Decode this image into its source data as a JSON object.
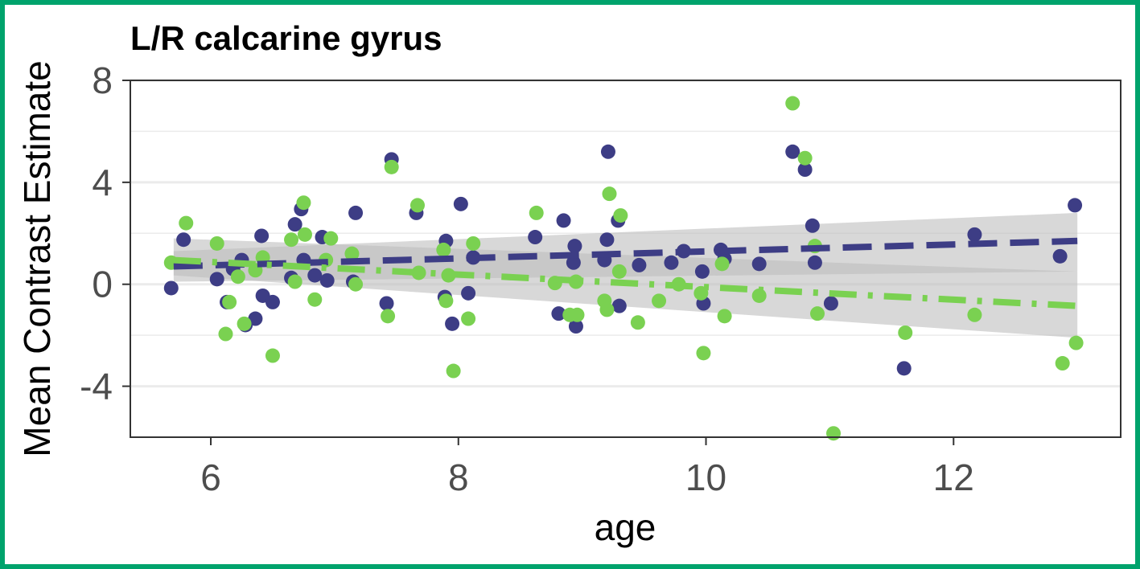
{
  "chart_data": {
    "type": "scatter",
    "title": "L/R calcarine gyrus",
    "xlabel": "age",
    "ylabel": "Mean Contrast Estimate",
    "xlim": [
      5.35,
      13.35
    ],
    "ylim": [
      -6.0,
      8.0
    ],
    "x_ticks": [
      6,
      8,
      10,
      12
    ],
    "x_tick_labels": [
      "6",
      "8",
      "10",
      "12"
    ],
    "y_ticks": [
      -4,
      0,
      4,
      8
    ],
    "y_tick_labels": [
      "-4",
      "0",
      "4",
      "8"
    ],
    "y_minor_gridlines": [
      -6,
      -2,
      2,
      6
    ],
    "grid": "horizontal",
    "legend": "none",
    "colors": {
      "series_a": "#3d3d85",
      "series_b": "#7ad151",
      "ribbon": "#bebebe",
      "gridline": "#ebebeb",
      "border": "#333333"
    },
    "series": [
      {
        "color": "#3d3d85",
        "line_style": "dashed",
        "trend": {
          "x": [
            5.7,
            13.0
          ],
          "y": [
            0.7,
            1.7
          ]
        },
        "ci_band": {
          "x": [
            5.7,
            13.0
          ],
          "lower": [
            0.1,
            0.5
          ],
          "upper": [
            1.3,
            2.8
          ]
        },
        "points": [
          [
            5.68,
            -0.15
          ],
          [
            5.78,
            1.75
          ],
          [
            6.05,
            0.2
          ],
          [
            6.13,
            -0.7
          ],
          [
            6.18,
            0.6
          ],
          [
            6.25,
            0.95
          ],
          [
            6.28,
            -1.6
          ],
          [
            6.36,
            -1.35
          ],
          [
            6.41,
            1.9
          ],
          [
            6.42,
            -0.45
          ],
          [
            6.5,
            -0.7
          ],
          [
            6.65,
            0.25
          ],
          [
            6.68,
            2.35
          ],
          [
            6.73,
            2.95
          ],
          [
            6.75,
            0.95
          ],
          [
            6.84,
            0.35
          ],
          [
            6.9,
            1.85
          ],
          [
            6.94,
            0.15
          ],
          [
            7.15,
            0.1
          ],
          [
            7.17,
            2.8
          ],
          [
            7.42,
            -0.75
          ],
          [
            7.46,
            4.9
          ],
          [
            7.66,
            2.8
          ],
          [
            7.89,
            -0.5
          ],
          [
            7.9,
            1.7
          ],
          [
            7.95,
            -1.55
          ],
          [
            8.02,
            3.15
          ],
          [
            8.08,
            -0.35
          ],
          [
            8.12,
            1.05
          ],
          [
            8.62,
            1.85
          ],
          [
            8.81,
            -1.15
          ],
          [
            8.85,
            2.5
          ],
          [
            8.93,
            0.85
          ],
          [
            8.94,
            1.5
          ],
          [
            8.95,
            -1.65
          ],
          [
            9.18,
            0.95
          ],
          [
            9.2,
            1.75
          ],
          [
            9.21,
            5.2
          ],
          [
            9.29,
            2.5
          ],
          [
            9.3,
            -0.85
          ],
          [
            9.46,
            0.75
          ],
          [
            9.72,
            0.85
          ],
          [
            9.82,
            1.3
          ],
          [
            9.97,
            0.5
          ],
          [
            9.98,
            -0.75
          ],
          [
            10.12,
            1.35
          ],
          [
            10.15,
            1.0
          ],
          [
            10.43,
            0.8
          ],
          [
            10.7,
            5.2
          ],
          [
            10.8,
            4.5
          ],
          [
            10.86,
            2.3
          ],
          [
            10.88,
            0.85
          ],
          [
            11.01,
            -0.75
          ],
          [
            11.6,
            -3.3
          ],
          [
            12.17,
            1.95
          ],
          [
            12.86,
            1.1
          ],
          [
            12.98,
            3.1
          ]
        ]
      },
      {
        "color": "#7ad151",
        "line_style": "dotdash",
        "trend": {
          "x": [
            5.7,
            13.0
          ],
          "y": [
            0.95,
            -0.85
          ]
        },
        "ci_band": {
          "x": [
            5.7,
            13.0
          ],
          "lower": [
            0.35,
            -2.1
          ],
          "upper": [
            1.8,
            0.5
          ]
        },
        "points": [
          [
            5.68,
            0.85
          ],
          [
            5.8,
            2.4
          ],
          [
            6.05,
            1.6
          ],
          [
            6.12,
            -1.95
          ],
          [
            6.15,
            -0.7
          ],
          [
            6.22,
            0.3
          ],
          [
            6.27,
            -1.55
          ],
          [
            6.36,
            0.55
          ],
          [
            6.42,
            1.05
          ],
          [
            6.5,
            -2.8
          ],
          [
            6.65,
            1.75
          ],
          [
            6.68,
            0.1
          ],
          [
            6.75,
            3.2
          ],
          [
            6.76,
            1.95
          ],
          [
            6.84,
            -0.6
          ],
          [
            6.93,
            0.95
          ],
          [
            6.97,
            1.8
          ],
          [
            7.14,
            1.2
          ],
          [
            7.17,
            0.0
          ],
          [
            7.43,
            -1.25
          ],
          [
            7.46,
            4.6
          ],
          [
            7.67,
            3.1
          ],
          [
            7.68,
            0.45
          ],
          [
            7.88,
            1.35
          ],
          [
            7.9,
            -0.65
          ],
          [
            7.92,
            0.35
          ],
          [
            7.96,
            -3.4
          ],
          [
            8.08,
            -1.35
          ],
          [
            8.12,
            1.6
          ],
          [
            8.63,
            2.8
          ],
          [
            8.78,
            0.05
          ],
          [
            8.9,
            -1.2
          ],
          [
            8.95,
            0.1
          ],
          [
            8.96,
            -1.2
          ],
          [
            9.18,
            -0.65
          ],
          [
            9.2,
            -1.0
          ],
          [
            9.22,
            3.55
          ],
          [
            9.3,
            0.5
          ],
          [
            9.31,
            2.7
          ],
          [
            9.45,
            -1.5
          ],
          [
            9.62,
            -0.65
          ],
          [
            9.78,
            0.0
          ],
          [
            9.96,
            -0.35
          ],
          [
            9.98,
            -2.7
          ],
          [
            10.13,
            0.8
          ],
          [
            10.15,
            -1.25
          ],
          [
            10.43,
            -0.45
          ],
          [
            10.7,
            7.1
          ],
          [
            10.8,
            4.95
          ],
          [
            10.88,
            1.5
          ],
          [
            10.9,
            -1.15
          ],
          [
            11.03,
            -5.85
          ],
          [
            11.61,
            -1.9
          ],
          [
            12.17,
            -1.2
          ],
          [
            12.88,
            -3.1
          ],
          [
            12.99,
            -2.3
          ]
        ]
      }
    ]
  }
}
